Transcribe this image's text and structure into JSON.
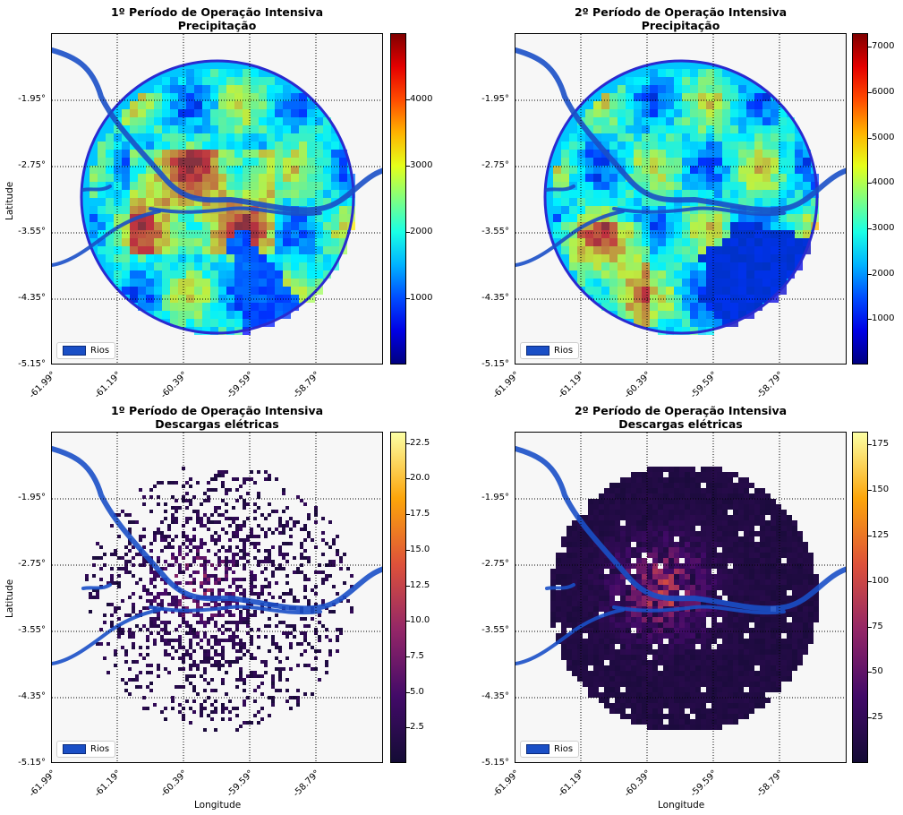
{
  "panels": [
    {
      "title_line1": "1º Período de Operação Intensiva",
      "title_line2": "Precipitação",
      "colormap": "jet",
      "colorbar_ticks": [
        "1000",
        "2000",
        "3000",
        "4000"
      ],
      "vmax": 5000
    },
    {
      "title_line1": "2º Período de Operação Intensiva",
      "title_line2": "Precipitação",
      "colormap": "jet",
      "colorbar_ticks": [
        "1000",
        "2000",
        "3000",
        "4000",
        "5000",
        "6000",
        "7000"
      ],
      "vmax": 7300
    },
    {
      "title_line1": "1º Período de Operação Intensiva",
      "title_line2": "Descargas elétricas",
      "colormap": "inferno",
      "colorbar_ticks": [
        "2.5",
        "5.0",
        "7.5",
        "10.0",
        "12.5",
        "15.0",
        "17.5",
        "20.0",
        "22.5"
      ],
      "vmax": 23.3
    },
    {
      "title_line1": "2º Período de Operação Intensiva",
      "title_line2": "Descargas elétricas",
      "colormap": "inferno",
      "colorbar_ticks": [
        "25",
        "50",
        "75",
        "100",
        "125",
        "150",
        "175"
      ],
      "vmax": 182
    }
  ],
  "y_ticks": [
    "-1.95°",
    "-2.75°",
    "-3.55°",
    "-4.35°",
    "-5.15°"
  ],
  "x_ticks": [
    "-61.99°",
    "-61.19°",
    "-60.39°",
    "-59.59°",
    "-58.79°"
  ],
  "ylabel": "Latitude",
  "xlabel": "Longitude",
  "legend_label": "Rios",
  "colors": {
    "river": "#1a4fc6",
    "background": "#f7f7f7"
  }
}
